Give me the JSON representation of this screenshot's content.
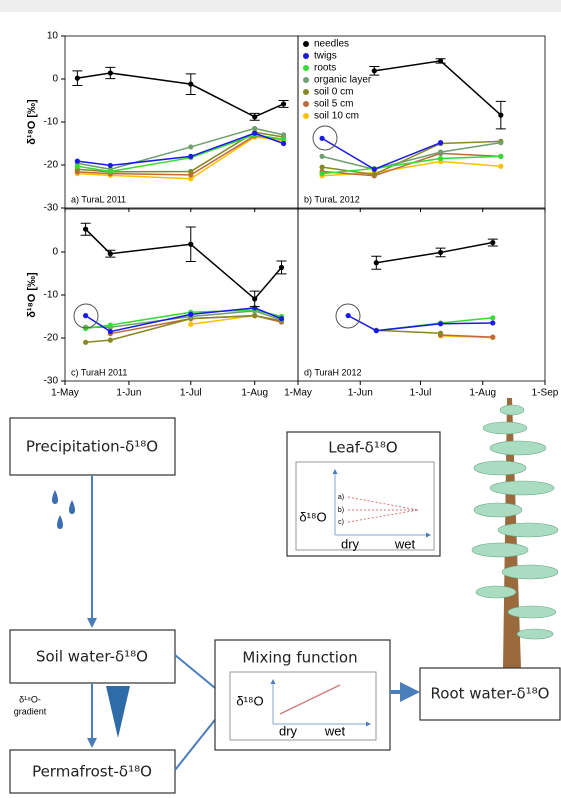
{
  "chart_data": [
    {
      "type": "line",
      "title": "a) TuraL 2011",
      "ylabel": "δ¹⁸O [‰]",
      "x": [
        6,
        22,
        61,
        92,
        106
      ],
      "xlim": [
        0,
        113
      ],
      "xticks": [
        0,
        31,
        61,
        92
      ],
      "ylim": [
        -30,
        10
      ],
      "yticks": [
        -30,
        -20,
        -10,
        0,
        10
      ],
      "series": [
        {
          "color": "#000000",
          "values": [
            0.2,
            1.4,
            -1.2,
            -8.8,
            -5.8
          ],
          "errors": [
            1.7,
            1.3,
            2.4,
            0.8,
            0.8
          ]
        },
        {
          "color": "#1a1ae6",
          "values": [
            -19.1,
            -20.1,
            -18.0,
            -12.6,
            -15.0
          ]
        },
        {
          "color": "#33dd33",
          "values": [
            -20.3,
            -21.5,
            -18.3,
            -13.0,
            -14.0
          ]
        },
        {
          "color": "#6f9f6f",
          "values": [
            -19.6,
            -21.0,
            -15.8,
            -11.5,
            -13.0
          ]
        },
        {
          "color": "#888822",
          "values": [
            -21.0,
            -21.6,
            -21.5,
            -12.4,
            -13.5
          ]
        },
        {
          "color": "#c06a3c",
          "values": [
            -21.6,
            -22.0,
            -22.3,
            -13.2,
            -14.0
          ]
        },
        {
          "color": "#ffc000",
          "values": [
            -22.0,
            -22.4,
            -23.2,
            -13.5,
            -14.3
          ]
        }
      ]
    },
    {
      "type": "line",
      "title": "b) TuraL 2012",
      "legend": "upper left",
      "x": [
        12,
        38,
        71,
        101
      ],
      "xlim": [
        0,
        123
      ],
      "xticks": [
        0,
        31,
        61,
        92,
        123
      ],
      "ylim": [
        -30,
        10
      ],
      "series": [
        {
          "name": "needles",
          "color": "#000000",
          "values": [
            null,
            1.9,
            4.2,
            -8.4
          ],
          "errors": [
            null,
            1.0,
            0.5,
            3.2
          ]
        },
        {
          "name": "twigs",
          "color": "#1a1ae6",
          "values": [
            -13.8,
            -21.0,
            -14.8,
            null
          ]
        },
        {
          "name": "roots",
          "color": "#33dd33",
          "values": [
            -22.0,
            -20.8,
            -18.5,
            -18.0
          ]
        },
        {
          "name": "organic layer",
          "color": "#6f9f6f",
          "values": [
            -18.0,
            -21.0,
            -17.0,
            -14.8
          ]
        },
        {
          "name": "soil 0 cm",
          "color": "#888822",
          "values": [
            -20.5,
            -22.2,
            -15.0,
            -14.5
          ]
        },
        {
          "name": "soil 5 cm",
          "color": "#c06a3c",
          "values": [
            -21.5,
            -22.5,
            -17.3,
            -18.0
          ]
        },
        {
          "name": "soil 10 cm",
          "color": "#ffc000",
          "values": [
            -22.5,
            -21.8,
            -19.2,
            -20.3
          ]
        }
      ]
    },
    {
      "type": "line",
      "title": "c) TuraH 2011",
      "ylabel": "δ¹⁸O [‰]",
      "x": [
        10,
        22,
        61,
        92,
        105
      ],
      "xlim": [
        0,
        113
      ],
      "xticks": [
        {
          "value": 0,
          "label": "1-May"
        },
        {
          "value": 31,
          "label": "1-Jun"
        },
        {
          "value": 61,
          "label": "1-Jul"
        },
        {
          "value": 92,
          "label": "1-Aug"
        }
      ],
      "ylim": [
        -30,
        10
      ],
      "yticks": [
        -30,
        -20,
        -10,
        0
      ],
      "series": [
        {
          "color": "#000000",
          "values": [
            5.3,
            -0.4,
            1.8,
            -10.9,
            -3.6
          ],
          "errors": [
            1.4,
            0.8,
            4.0,
            1.8,
            1.5
          ]
        },
        {
          "color": "#1a1ae6",
          "values": [
            -14.8,
            -18.5,
            -14.5,
            -13.0,
            -15.5
          ]
        },
        {
          "color": "#33dd33",
          "values": [
            -17.8,
            -17.0,
            -14.0,
            -13.5,
            -15.0
          ]
        },
        {
          "color": "#6f9f6f",
          "values": [
            -17.5,
            -17.5,
            -15.0,
            -13.7,
            -15.8
          ]
        },
        {
          "color": "#888822",
          "values": [
            -21.0,
            -20.5,
            -15.5,
            -14.8,
            -16.0
          ]
        },
        {
          "color": "#c06a3c",
          "values": [
            null,
            -19.0,
            -15.5,
            -14.8,
            -16.3
          ]
        },
        {
          "color": "#ffc000",
          "values": [
            null,
            null,
            -16.8,
            -14.8,
            -16.0
          ]
        }
      ]
    },
    {
      "type": "line",
      "title": "d) TuraH 2012",
      "x": [
        25,
        39,
        71,
        97
      ],
      "xlim": [
        0,
        123
      ],
      "xticks": [
        {
          "value": 0,
          "label": "1-May"
        },
        {
          "value": 31,
          "label": "1-Jun"
        },
        {
          "value": 61,
          "label": "1-Jul"
        },
        {
          "value": 92,
          "label": "1-Aug"
        },
        {
          "value": 123,
          "label": "1-Sep"
        }
      ],
      "ylim": [
        -30,
        10
      ],
      "series": [
        {
          "color": "#000000",
          "values": [
            null,
            -2.5,
            -0.1,
            2.2
          ],
          "errors": [
            null,
            1.5,
            1.0,
            0.8
          ]
        },
        {
          "color": "#1a1ae6",
          "values": [
            -14.8,
            -18.3,
            -16.7,
            -16.5
          ]
        },
        {
          "color": "#33dd33",
          "values": [
            null,
            -18.3,
            -16.5,
            -15.3
          ]
        },
        {
          "color": "#888822",
          "values": [
            null,
            -18.2,
            -18.9,
            null
          ]
        },
        {
          "color": "#c06a3c",
          "values": [
            null,
            null,
            -19.3,
            -19.8
          ]
        },
        {
          "color": "#ffc000",
          "values": [
            null,
            null,
            -19.5,
            -19.9
          ]
        }
      ]
    }
  ],
  "diagram": {
    "nodes": [
      "Precipitation-δ¹⁸O",
      "Soil water-δ¹⁸O",
      "Permafrost-δ¹⁸O",
      "Root water-δ¹⁸O"
    ],
    "gradient_label": [
      "δ¹⁸O-",
      "gradient"
    ],
    "leaf_panel": {
      "title": "Leaf-δ¹⁸O",
      "y_label": "δ¹⁸O",
      "x_labels": [
        "dry",
        "wet"
      ],
      "line_labels": [
        "a)",
        "b)",
        "c)"
      ]
    },
    "mixing_panel": {
      "title": "Mixing function",
      "y_label": "δ¹⁸O",
      "x_labels": [
        "dry",
        "wet"
      ]
    }
  }
}
